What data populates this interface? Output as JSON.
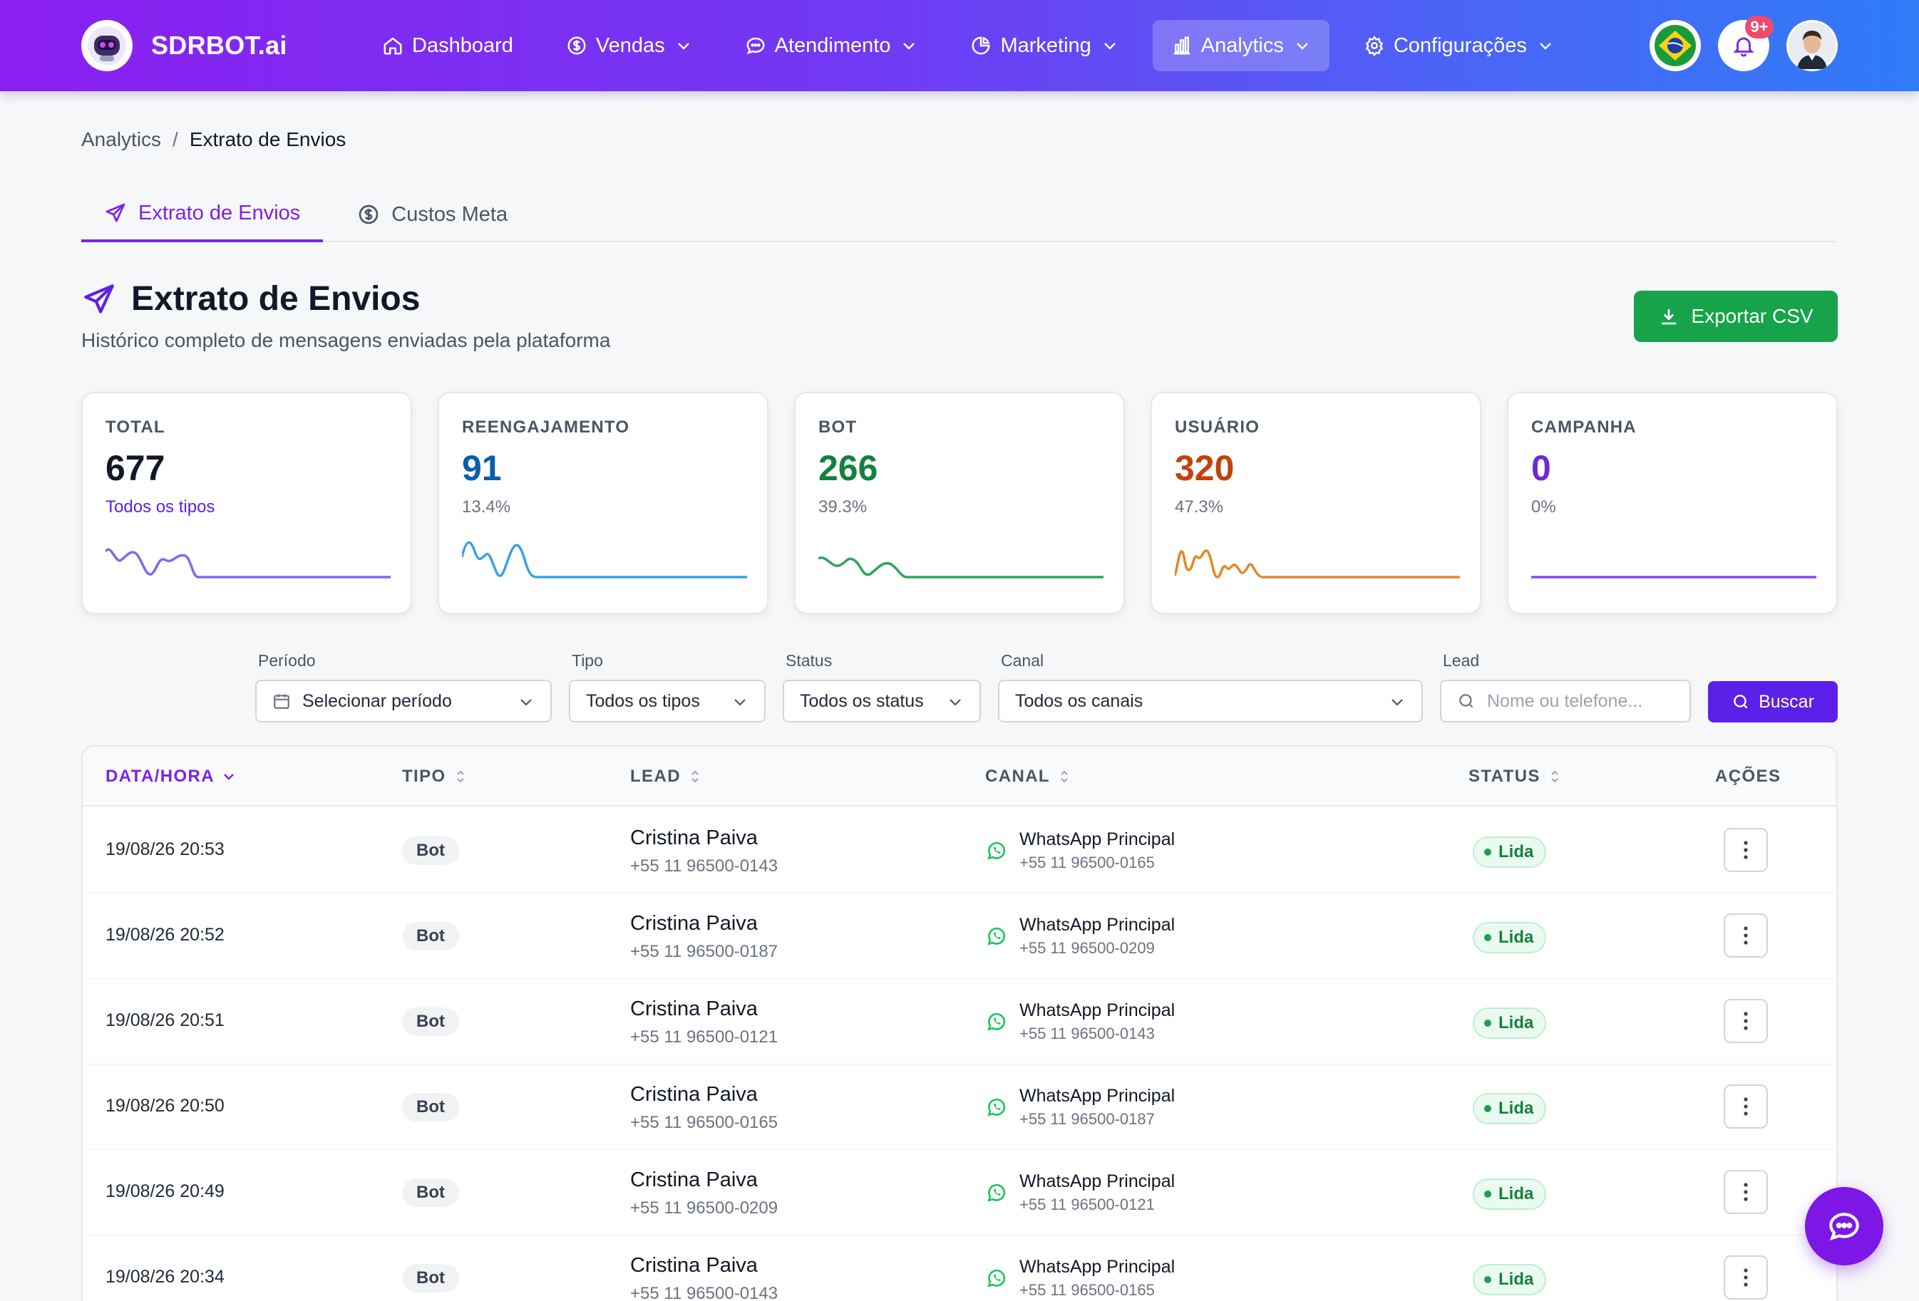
{
  "brand": {
    "name": "SDRBOT.ai"
  },
  "nav": {
    "items": [
      {
        "label": "Dashboard",
        "icon": "home-icon"
      },
      {
        "label": "Vendas",
        "icon": "dollar-icon"
      },
      {
        "label": "Atendimento",
        "icon": "chat-icon"
      },
      {
        "label": "Marketing",
        "icon": "pie-icon"
      },
      {
        "label": "Analytics",
        "icon": "bar-chart-icon",
        "active": true
      },
      {
        "label": "Configurações",
        "icon": "gear-icon"
      }
    ],
    "notifications_badge": "9+",
    "language_flag": "brazil-flag-icon"
  },
  "breadcrumb": {
    "parent": "Analytics",
    "separator": "/",
    "current": "Extrato de Envios"
  },
  "tabs": [
    {
      "label": "Extrato de Envios",
      "icon": "send-icon",
      "active": true
    },
    {
      "label": "Custos Meta",
      "icon": "dollar-circle-icon"
    }
  ],
  "header": {
    "title": "Extrato de Envios",
    "subtitle": "Histórico completo de mensagens enviadas pela plataforma",
    "export_label": "Exportar CSV"
  },
  "stats": [
    {
      "label": "TOTAL",
      "value": "677",
      "sub": "Todos os tipos",
      "color": "#111827",
      "sub_color": "#5b21e8",
      "line_color": "#7b6cf0"
    },
    {
      "label": "REENGAJAMENTO",
      "value": "91",
      "sub": "13.4%",
      "color": "#0b5ea8",
      "sub_color": "#6b7280",
      "line_color": "#38a3e6"
    },
    {
      "label": "BOT",
      "value": "266",
      "sub": "39.3%",
      "color": "#15803d",
      "sub_color": "#6b7280",
      "line_color": "#2ca55a"
    },
    {
      "label": "USUÁRIO",
      "value": "320",
      "sub": "47.3%",
      "color": "#c2410c",
      "sub_color": "#6b7280",
      "line_color": "#e0892a"
    },
    {
      "label": "CAMPANHA",
      "value": "0",
      "sub": "0%",
      "color": "#6d28d9",
      "sub_color": "#6b7280",
      "line_color": "#8b47e8"
    }
  ],
  "filters": {
    "periodo": {
      "label": "Período",
      "value": "Selecionar período"
    },
    "tipo": {
      "label": "Tipo",
      "value": "Todos os tipos"
    },
    "status": {
      "label": "Status",
      "value": "Todos os status"
    },
    "canal": {
      "label": "Canal",
      "value": "Todos os canais"
    },
    "lead": {
      "label": "Lead",
      "placeholder": "Nome ou telefone..."
    },
    "search_label": "Buscar"
  },
  "table": {
    "columns": [
      "DATA/HORA",
      "TIPO",
      "LEAD",
      "CANAL",
      "STATUS",
      "AÇÕES"
    ],
    "rows": [
      {
        "date": "19/08/26 20:53",
        "type": "Bot",
        "lead_name": "Cristina Paiva",
        "lead_phone": "+55 11 96500-0143",
        "channel": "WhatsApp Principal",
        "channel_phone": "+55 11 96500-0165",
        "status": "Lida"
      },
      {
        "date": "19/08/26 20:52",
        "type": "Bot",
        "lead_name": "Cristina Paiva",
        "lead_phone": "+55 11 96500-0187",
        "channel": "WhatsApp Principal",
        "channel_phone": "+55 11 96500-0209",
        "status": "Lida"
      },
      {
        "date": "19/08/26 20:51",
        "type": "Bot",
        "lead_name": "Cristina Paiva",
        "lead_phone": "+55 11 96500-0121",
        "channel": "WhatsApp Principal",
        "channel_phone": "+55 11 96500-0143",
        "status": "Lida"
      },
      {
        "date": "19/08/26 20:50",
        "type": "Bot",
        "lead_name": "Cristina Paiva",
        "lead_phone": "+55 11 96500-0165",
        "channel": "WhatsApp Principal",
        "channel_phone": "+55 11 96500-0187",
        "status": "Lida"
      },
      {
        "date": "19/08/26 20:49",
        "type": "Bot",
        "lead_name": "Cristina Paiva",
        "lead_phone": "+55 11 96500-0209",
        "channel": "WhatsApp Principal",
        "channel_phone": "+55 11 96500-0121",
        "status": "Lida"
      },
      {
        "date": "19/08/26 20:34",
        "type": "Bot",
        "lead_name": "Cristina Paiva",
        "lead_phone": "+55 11 96500-0143",
        "channel": "WhatsApp Principal",
        "channel_phone": "+55 11 96500-0165",
        "status": "Lida"
      }
    ]
  },
  "colors": {
    "accent": "#7c22e8",
    "export": "#16a34a",
    "search": "#5b21e8"
  }
}
